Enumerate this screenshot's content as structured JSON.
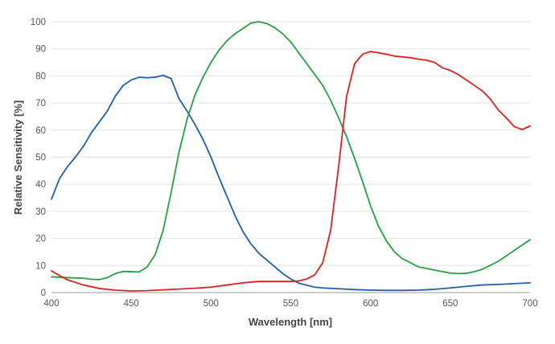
{
  "chart_data": {
    "type": "line",
    "title": "",
    "xlabel": "Wavelength [nm]",
    "ylabel": "Relative Sensitivity [%]",
    "xlim": [
      400,
      700
    ],
    "ylim": [
      0,
      100
    ],
    "xticks": [
      400,
      450,
      500,
      550,
      600,
      650,
      700
    ],
    "yticks": [
      0,
      10,
      20,
      30,
      40,
      50,
      60,
      70,
      80,
      90,
      100
    ],
    "grid": "horizontal",
    "legend": "none",
    "series": [
      {
        "color": "#1f5fb0",
        "x": [
          400,
          405,
          410,
          415,
          420,
          425,
          430,
          435,
          440,
          445,
          450,
          455,
          460,
          465,
          470,
          475,
          480,
          485,
          490,
          495,
          500,
          505,
          510,
          515,
          520,
          525,
          530,
          535,
          540,
          545,
          550,
          555,
          560,
          565,
          570,
          580,
          590,
          600,
          610,
          620,
          630,
          640,
          650,
          660,
          670,
          680,
          690,
          700
        ],
        "values": [
          34.5,
          42,
          46.5,
          50,
          54,
          59,
          63,
          67,
          72.5,
          76.5,
          78.5,
          79.5,
          79.3,
          79.5,
          80.2,
          79,
          71.5,
          67,
          62,
          56.5,
          50,
          42.5,
          35.5,
          28.5,
          22.5,
          18,
          14.5,
          12,
          9.5,
          7,
          5,
          3.5,
          2.7,
          2,
          1.7,
          1.4,
          1.1,
          0.9,
          0.8,
          0.8,
          0.9,
          1.2,
          1.7,
          2.3,
          2.8,
          3,
          3.3,
          3.6
        ]
      },
      {
        "color": "#22a340",
        "x": [
          400,
          410,
          420,
          425,
          430,
          435,
          440,
          445,
          450,
          455,
          460,
          465,
          470,
          475,
          480,
          485,
          490,
          495,
          500,
          505,
          510,
          515,
          520,
          525,
          530,
          535,
          540,
          545,
          550,
          555,
          560,
          565,
          570,
          575,
          580,
          585,
          590,
          595,
          600,
          605,
          610,
          615,
          620,
          625,
          630,
          640,
          650,
          655,
          660,
          665,
          670,
          680,
          690,
          700
        ],
        "values": [
          5.8,
          5.5,
          5.3,
          4.9,
          4.8,
          5.5,
          7,
          7.8,
          7.7,
          7.6,
          9.5,
          14,
          23,
          37,
          52,
          64,
          73,
          79.5,
          85,
          89.5,
          93,
          95.5,
          97.5,
          99.5,
          100,
          99.3,
          97.8,
          95.5,
          92.5,
          88.5,
          84.5,
          80.5,
          76.5,
          71,
          64.5,
          57.5,
          49.5,
          41,
          32,
          24.5,
          19,
          15,
          12.5,
          11,
          9.5,
          8.3,
          7.2,
          7,
          7.1,
          7.7,
          8.6,
          11.5,
          15.5,
          19.5
        ]
      },
      {
        "color": "#e02020",
        "x": [
          400,
          405,
          410,
          420,
          430,
          440,
          450,
          460,
          470,
          480,
          490,
          500,
          510,
          520,
          530,
          540,
          550,
          555,
          560,
          565,
          570,
          575,
          580,
          585,
          590,
          595,
          600,
          605,
          610,
          615,
          620,
          625,
          630,
          635,
          640,
          645,
          650,
          655,
          660,
          665,
          670,
          675,
          680,
          685,
          690,
          695,
          700
        ],
        "values": [
          8,
          6.3,
          4.7,
          2.8,
          1.5,
          0.9,
          0.6,
          0.7,
          1,
          1.3,
          1.6,
          2,
          2.8,
          3.6,
          4.1,
          4.1,
          4.1,
          4.3,
          5,
          6.5,
          11,
          23,
          46.5,
          72.5,
          84.5,
          88,
          89,
          88.5,
          88,
          87.3,
          87,
          86.7,
          86.2,
          85.8,
          85,
          83,
          82,
          80.5,
          78.5,
          76.5,
          74.5,
          71.5,
          67.5,
          64.5,
          61.3,
          60.2,
          61.5
        ]
      }
    ]
  }
}
